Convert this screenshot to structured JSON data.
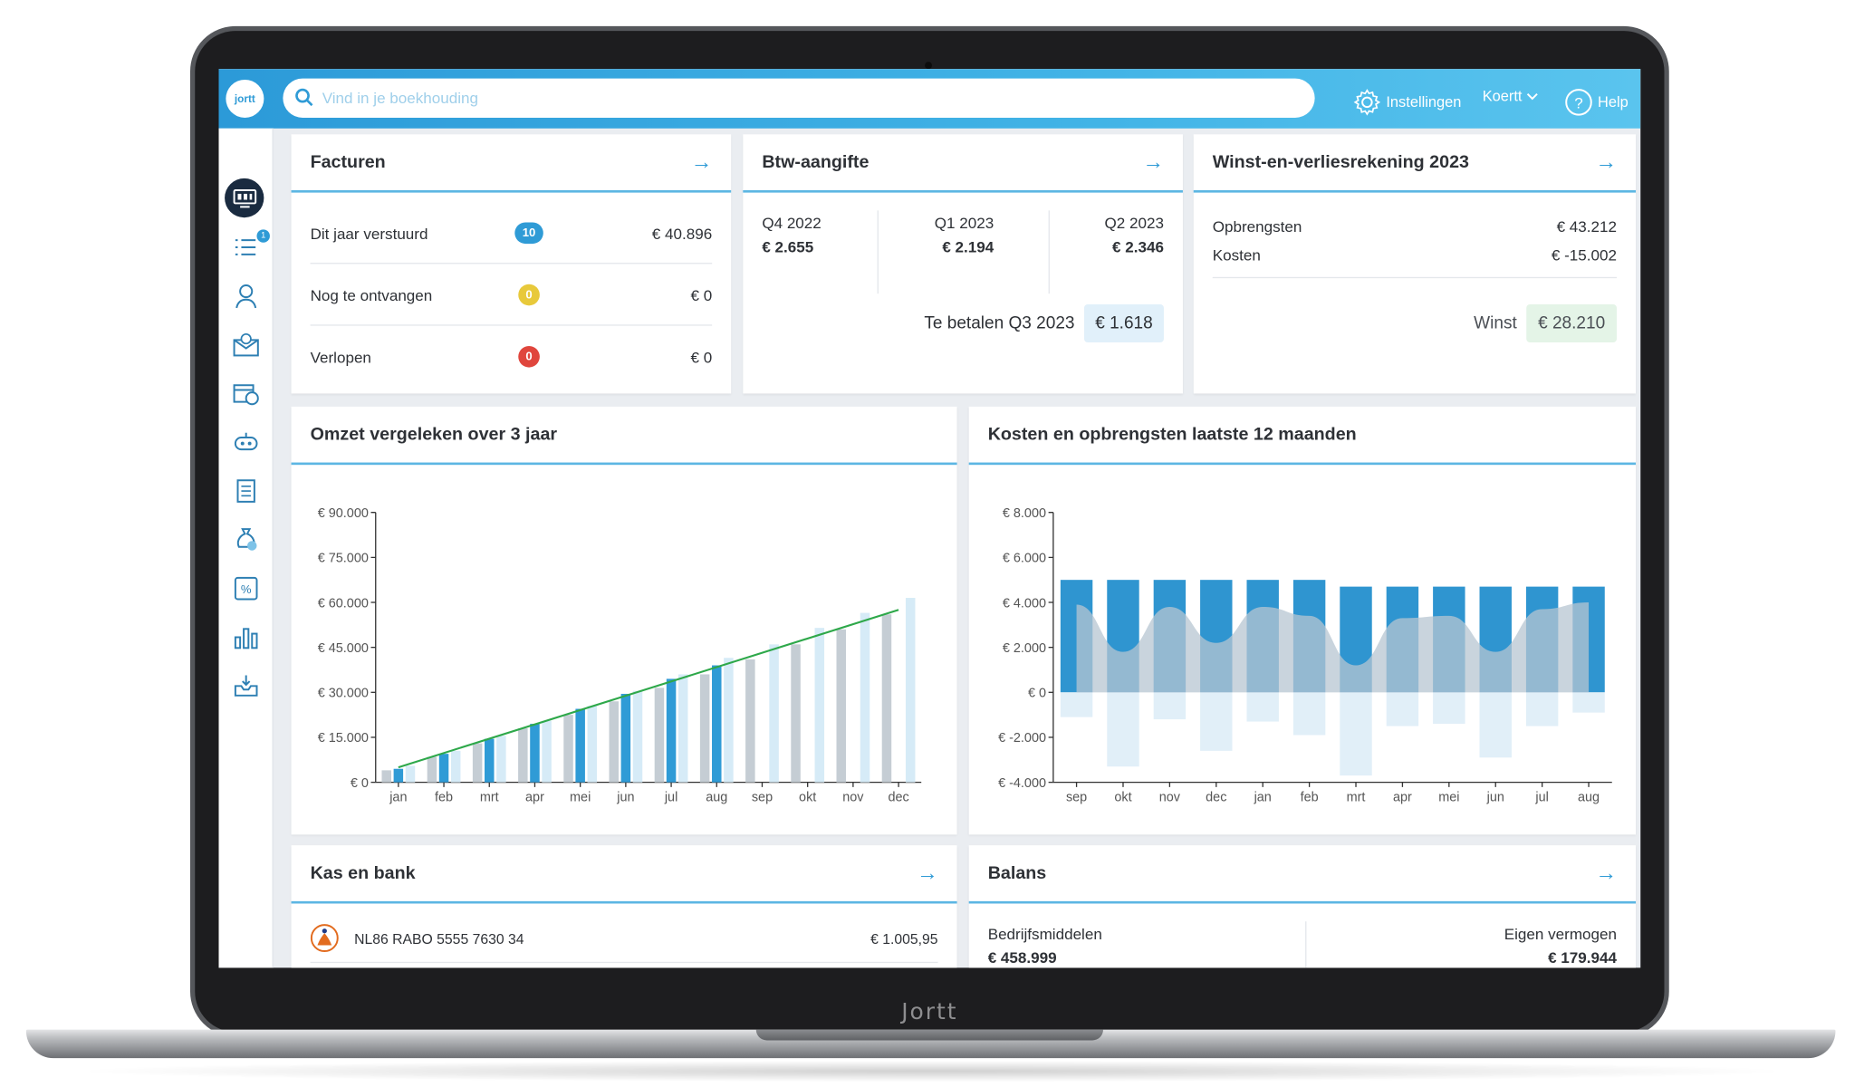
{
  "brand_label": "Jortt",
  "app": {
    "logo": "jortt"
  },
  "topbar": {
    "search_placeholder": "Vind in je boekhouding",
    "settings_label": "Instellingen",
    "user_label": "Koertt",
    "help_label": "Help"
  },
  "sidebar": {
    "items": [
      "dashboard-icon",
      "list-icon",
      "contacts-icon",
      "invoice-mail-icon",
      "calendar-clock-icon",
      "robot-icon",
      "receipt-icon",
      "money-bag-icon",
      "percent-icon",
      "bar-chart-icon",
      "inbox-icon"
    ],
    "badge": "1"
  },
  "facturen": {
    "title": "Facturen",
    "rows": [
      {
        "label": "Dit jaar verstuurd",
        "count": "10",
        "value": "€ 40.896",
        "color": "#2f9bd6"
      },
      {
        "label": "Nog te ontvangen",
        "count": "0",
        "value": "€ 0",
        "color": "#e8c93b"
      },
      {
        "label": "Verlopen",
        "count": "0",
        "value": "€ 0",
        "color": "#e0463d"
      }
    ]
  },
  "btw": {
    "title": "Btw-aangifte",
    "quarters": [
      {
        "label": "Q4 2022",
        "value": "€ 2.655"
      },
      {
        "label": "Q1 2023",
        "value": "€ 2.194"
      },
      {
        "label": "Q2 2023",
        "value": "€ 2.346"
      }
    ],
    "due_label": "Te betalen Q3 2023",
    "due_value": "€ 1.618"
  },
  "wv": {
    "title": "Winst-en-verliesrekening 2023",
    "revenue_label": "Opbrengsten",
    "revenue_value": "€ 43.212",
    "cost_label": "Kosten",
    "cost_value": "€ -15.002",
    "profit_label": "Winst",
    "profit_value": "€ 28.210"
  },
  "omzet": {
    "title": "Omzet vergeleken over 3 jaar"
  },
  "kosten": {
    "title": "Kosten en opbrengsten laatste 12 maanden"
  },
  "kas": {
    "title": "Kas en bank",
    "account": "NL86 RABO 5555 7630 34",
    "balance": "€ 1.005,95"
  },
  "balans": {
    "title": "Balans",
    "left_label": "Bedrijfsmiddelen",
    "left_value": "€ 458.999",
    "right_label": "Eigen vermogen",
    "right_value": "€ 179.944"
  },
  "chart_data": [
    {
      "type": "bar",
      "title": "Omzet vergeleken over 3 jaar",
      "categories": [
        "jan",
        "feb",
        "mrt",
        "apr",
        "mei",
        "jun",
        "jul",
        "aug",
        "sep",
        "okt",
        "nov",
        "dec"
      ],
      "ylim": [
        0,
        90000
      ],
      "yticks": [
        "€ 0",
        "€ 15.000",
        "€ 30.000",
        "€ 45.000",
        "€ 60.000",
        "€ 75.000",
        "€ 90.000"
      ],
      "series": [
        {
          "values": [
            4000,
            8500,
            13000,
            18000,
            22500,
            27000,
            31500,
            36000,
            41000,
            46000,
            51000,
            56000
          ],
          "color": "#c5cdd4"
        },
        {
          "values": [
            4500,
            9500,
            14500,
            19500,
            24500,
            29500,
            34500,
            39000,
            null,
            null,
            null,
            null
          ],
          "color": "#2f9bd6"
        },
        {
          "values": [
            5500,
            10500,
            15500,
            20500,
            25500,
            30500,
            36000,
            41500,
            46000,
            51500,
            56500,
            61500
          ],
          "color": "#d6ebf7"
        }
      ],
      "trend": {
        "from": 5000,
        "to": 57500,
        "color": "#2ea84a"
      },
      "grid": false,
      "legend": "none"
    },
    {
      "type": "bar",
      "title": "Kosten en opbrengsten laatste 12 maanden",
      "categories": [
        "sep",
        "okt",
        "nov",
        "dec",
        "jan",
        "feb",
        "mrt",
        "apr",
        "mei",
        "jun",
        "jul",
        "aug"
      ],
      "ylim": [
        -4000,
        8000
      ],
      "yticks": [
        "€ -4.000",
        "€ -2.000",
        "€ 0",
        "€ 2.000",
        "€ 4.000",
        "€ 6.000",
        "€ 8.000"
      ],
      "series": [
        {
          "values": [
            5000,
            5000,
            5000,
            5000,
            5000,
            5000,
            4700,
            4700,
            4700,
            4700,
            4700,
            4700
          ],
          "color": "#2f95d0"
        },
        {
          "values": [
            -1100,
            -3300,
            -1200,
            -2600,
            -1300,
            -1900,
            -3700,
            -1500,
            -1400,
            -2900,
            -1500,
            -900
          ],
          "color": "#e1eff8"
        },
        {
          "values": [
            3900,
            1800,
            3800,
            2200,
            3800,
            3400,
            1200,
            3300,
            3400,
            1800,
            3700,
            4000
          ],
          "color": "#b7c6d2"
        }
      ],
      "grid": false,
      "legend": "none"
    }
  ]
}
